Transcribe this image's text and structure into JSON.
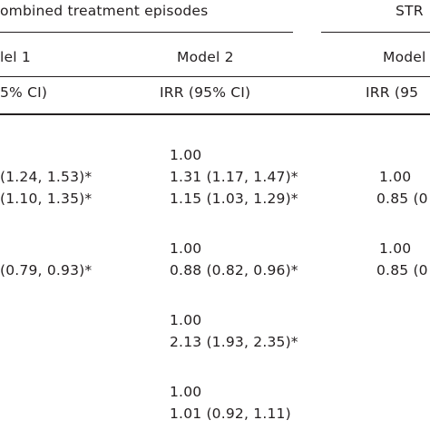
{
  "table": {
    "group_headers": {
      "combined": "ombined treatment episodes",
      "str": "STR"
    },
    "model_headers": {
      "model1": "lel 1",
      "model2": "Model 2",
      "model_str": "Model"
    },
    "stat_headers": {
      "col1": "5% CI)",
      "col2": "IRR (95% CI)",
      "col3": "IRR (95"
    },
    "rows": [
      {
        "col2": "1.00"
      },
      {
        "col1": "(1.24, 1.53)*",
        "col2": "1.31 (1.17, 1.47)*",
        "col3": "1.00"
      },
      {
        "col1": "(1.10, 1.35)*",
        "col2": "1.15 (1.03, 1.29)*",
        "col3": "0.85 (0"
      },
      {
        "col2": "1.00",
        "col3": "1.00"
      },
      {
        "col1": "(0.79, 0.93)*",
        "col2": "0.88 (0.82, 0.96)*",
        "col3": "0.85 (0"
      },
      {
        "col2": "1.00"
      },
      {
        "col2": "2.13 (1.93, 2.35)*"
      },
      {
        "col2": "1.00"
      },
      {
        "col2": "1.01 (0.92, 1.11)"
      }
    ]
  }
}
